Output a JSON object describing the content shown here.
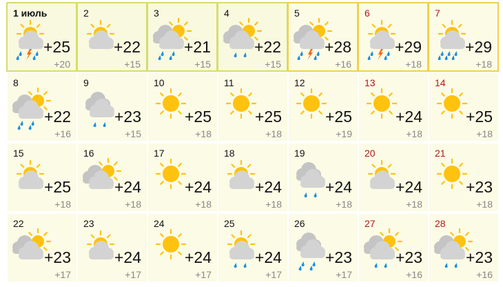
{
  "month_label": "июль",
  "colors": {
    "sun": "#ffc20e",
    "cloud": "#d3d3d3",
    "cloud_back": "#c4c4c4",
    "rain": "#1e8fe0",
    "thunder": "#f26a10",
    "weekend": "#b3161b"
  },
  "days": [
    {
      "date": "1 июль",
      "weekend": false,
      "icon": {
        "sky": "sun-cloud",
        "rain": 4,
        "thunder": true
      },
      "max": "+25",
      "min": "+20"
    },
    {
      "date": "2",
      "weekend": false,
      "icon": {
        "sky": "sun-cloud",
        "rain": 0,
        "thunder": false
      },
      "max": "+22",
      "min": "+15"
    },
    {
      "date": "3",
      "weekend": false,
      "icon": {
        "sky": "sun-clouds",
        "rain": 4,
        "thunder": false
      },
      "max": "+21",
      "min": "+15"
    },
    {
      "date": "4",
      "weekend": false,
      "icon": {
        "sky": "sun-clouds",
        "rain": 2,
        "thunder": false
      },
      "max": "+22",
      "min": "+15"
    },
    {
      "date": "5",
      "weekend": false,
      "icon": {
        "sky": "sun-clouds",
        "rain": 4,
        "thunder": true
      },
      "max": "+28",
      "min": "+16"
    },
    {
      "date": "6",
      "weekend": true,
      "icon": {
        "sky": "sun-cloud",
        "rain": 4,
        "thunder": true
      },
      "max": "+29",
      "min": "+18"
    },
    {
      "date": "7",
      "weekend": true,
      "icon": {
        "sky": "sun-cloud",
        "rain": 6,
        "thunder": false
      },
      "max": "+29",
      "min": "+18"
    },
    {
      "date": "8",
      "weekend": false,
      "icon": {
        "sky": "sun-clouds",
        "rain": 4,
        "thunder": false
      },
      "max": "+22",
      "min": "+16"
    },
    {
      "date": "9",
      "weekend": false,
      "icon": {
        "sky": "clouds",
        "rain": 2,
        "thunder": false
      },
      "max": "+23",
      "min": "+15"
    },
    {
      "date": "10",
      "weekend": false,
      "icon": {
        "sky": "sun",
        "rain": 0,
        "thunder": false
      },
      "max": "+25",
      "min": "+18"
    },
    {
      "date": "11",
      "weekend": false,
      "icon": {
        "sky": "sun",
        "rain": 0,
        "thunder": false
      },
      "max": "+25",
      "min": "+18"
    },
    {
      "date": "12",
      "weekend": false,
      "icon": {
        "sky": "sun",
        "rain": 0,
        "thunder": false
      },
      "max": "+25",
      "min": "+19"
    },
    {
      "date": "13",
      "weekend": true,
      "icon": {
        "sky": "sun",
        "rain": 0,
        "thunder": false
      },
      "max": "+24",
      "min": "+18"
    },
    {
      "date": "14",
      "weekend": true,
      "icon": {
        "sky": "sun",
        "rain": 0,
        "thunder": false
      },
      "max": "+25",
      "min": "+18"
    },
    {
      "date": "15",
      "weekend": false,
      "icon": {
        "sky": "sun-cloud",
        "rain": 0,
        "thunder": false
      },
      "max": "+25",
      "min": "+18"
    },
    {
      "date": "16",
      "weekend": false,
      "icon": {
        "sky": "sun-clouds",
        "rain": 0,
        "thunder": false
      },
      "max": "+24",
      "min": "+18"
    },
    {
      "date": "17",
      "weekend": false,
      "icon": {
        "sky": "sun",
        "rain": 0,
        "thunder": false
      },
      "max": "+24",
      "min": "+18"
    },
    {
      "date": "18",
      "weekend": false,
      "icon": {
        "sky": "sun-cloud",
        "rain": 0,
        "thunder": false
      },
      "max": "+24",
      "min": "+18"
    },
    {
      "date": "19",
      "weekend": false,
      "icon": {
        "sky": "clouds",
        "rain": 2,
        "thunder": false
      },
      "max": "+24",
      "min": "+18"
    },
    {
      "date": "20",
      "weekend": true,
      "icon": {
        "sky": "sun-cloud",
        "rain": 0,
        "thunder": false
      },
      "max": "+24",
      "min": "+18"
    },
    {
      "date": "21",
      "weekend": true,
      "icon": {
        "sky": "sun",
        "rain": 0,
        "thunder": false
      },
      "max": "+23",
      "min": "+18"
    },
    {
      "date": "22",
      "weekend": false,
      "icon": {
        "sky": "sun-clouds",
        "rain": 0,
        "thunder": false
      },
      "max": "+23",
      "min": "+17"
    },
    {
      "date": "23",
      "weekend": false,
      "icon": {
        "sky": "sun-cloud",
        "rain": 0,
        "thunder": false
      },
      "max": "+24",
      "min": "+17"
    },
    {
      "date": "24",
      "weekend": false,
      "icon": {
        "sky": "sun",
        "rain": 0,
        "thunder": false
      },
      "max": "+24",
      "min": "+17"
    },
    {
      "date": "25",
      "weekend": false,
      "icon": {
        "sky": "sun-cloud",
        "rain": 2,
        "thunder": false
      },
      "max": "+24",
      "min": "+17"
    },
    {
      "date": "26",
      "weekend": false,
      "icon": {
        "sky": "clouds",
        "rain": 4,
        "thunder": false
      },
      "max": "+23",
      "min": "+17"
    },
    {
      "date": "27",
      "weekend": true,
      "icon": {
        "sky": "sun-clouds",
        "rain": 2,
        "thunder": false
      },
      "max": "+23",
      "min": "+16"
    },
    {
      "date": "28",
      "weekend": true,
      "icon": {
        "sky": "sun-clouds",
        "rain": 2,
        "thunder": false
      },
      "max": "+23",
      "min": "+16"
    }
  ]
}
